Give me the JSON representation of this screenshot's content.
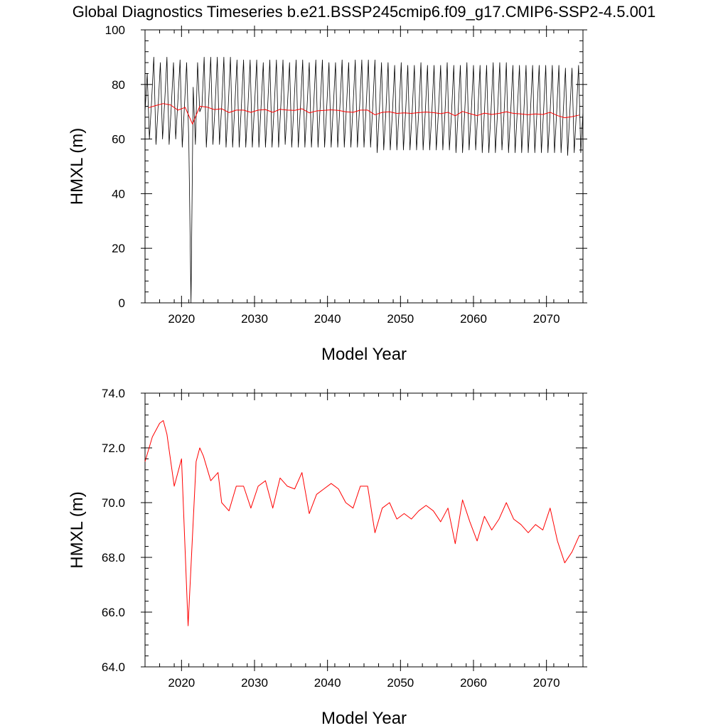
{
  "title": "Global Diagnostics Timeseries b.e21.BSSP245cmip6.f09_g17.CMIP6-SSP2-4.5.001",
  "colors": {
    "monthly": "#000000",
    "annual": "#ff0000",
    "axis": "#000000"
  },
  "chart_data": [
    {
      "type": "line",
      "xlabel": "Model Year",
      "ylabel": "HMXL (m)",
      "xlim": [
        2015,
        2075
      ],
      "ylim": [
        0,
        100
      ],
      "xticks": [
        "2020",
        "2030",
        "2040",
        "2050",
        "2060",
        "2070"
      ],
      "xtick_values": [
        2020,
        2030,
        2040,
        2050,
        2060,
        2070
      ],
      "yticks": [
        "0",
        "20",
        "40",
        "60",
        "80",
        "100"
      ],
      "ytick_values": [
        0,
        20,
        40,
        60,
        80,
        100
      ],
      "series": [
        {
          "kind": "monthly",
          "x": [
            2015.0,
            2015.3,
            2015.6,
            2015.9,
            2016.2,
            2016.5,
            2016.8,
            2017.1,
            2017.4,
            2017.7,
            2018.0,
            2018.3,
            2018.6,
            2018.9,
            2019.2,
            2019.5,
            2019.8,
            2020.1,
            2020.4,
            2020.7,
            2021.0,
            2021.3,
            2021.6,
            2021.9,
            2022.2,
            2022.5,
            2022.8,
            2023.1,
            2023.4,
            2023.7,
            2024.0,
            2024.3,
            2024.6,
            2024.9,
            2025.2,
            2025.5,
            2025.8,
            2026.1,
            2026.4,
            2026.7,
            2027.0,
            2027.3,
            2027.6,
            2027.9,
            2028.2,
            2028.5,
            2028.8,
            2029.1,
            2029.4,
            2029.7,
            2030.0,
            2030.3,
            2030.6,
            2030.9,
            2031.2,
            2031.5,
            2031.8,
            2032.1,
            2032.4,
            2032.7,
            2033.0,
            2033.3,
            2033.6,
            2033.9,
            2034.2,
            2034.5,
            2034.8,
            2035.1,
            2035.4,
            2035.7,
            2036.0,
            2036.3,
            2036.6,
            2036.9,
            2037.2,
            2037.5,
            2037.8,
            2038.1,
            2038.4,
            2038.7,
            2039.0,
            2039.3,
            2039.6,
            2039.9,
            2040.2,
            2040.5,
            2040.8,
            2041.1,
            2041.4,
            2041.7,
            2042.0,
            2042.3,
            2042.6,
            2042.9,
            2043.2,
            2043.5,
            2043.8,
            2044.1,
            2044.4,
            2044.7,
            2045.0,
            2045.3,
            2045.6,
            2045.9,
            2046.2,
            2046.5,
            2046.8,
            2047.1,
            2047.4,
            2047.7,
            2048.0,
            2048.3,
            2048.6,
            2048.9,
            2049.2,
            2049.5,
            2049.8,
            2050.1,
            2050.4,
            2050.7,
            2051.0,
            2051.3,
            2051.6,
            2051.9,
            2052.2,
            2052.5,
            2052.8,
            2053.1,
            2053.4,
            2053.7,
            2054.0,
            2054.3,
            2054.6,
            2054.9,
            2055.2,
            2055.5,
            2055.8,
            2056.1,
            2056.4,
            2056.7,
            2057.0,
            2057.3,
            2057.6,
            2057.9,
            2058.2,
            2058.5,
            2058.8,
            2059.1,
            2059.4,
            2059.7,
            2060.0,
            2060.3,
            2060.6,
            2060.9,
            2061.2,
            2061.5,
            2061.8,
            2062.1,
            2062.4,
            2062.7,
            2063.0,
            2063.3,
            2063.6,
            2063.9,
            2064.2,
            2064.5,
            2064.8,
            2065.1,
            2065.4,
            2065.7,
            2066.0,
            2066.3,
            2066.6,
            2066.9,
            2067.2,
            2067.5,
            2067.8,
            2068.1,
            2068.4,
            2068.7,
            2069.0,
            2069.3,
            2069.6,
            2069.9,
            2070.2,
            2070.5,
            2070.8,
            2071.1,
            2071.4,
            2071.7,
            2072.0,
            2072.3,
            2072.6,
            2072.9,
            2073.2,
            2073.5,
            2073.8,
            2074.1,
            2074.4,
            2074.7,
            2075.0
          ],
          "y": [
            70,
            84,
            60,
            74,
            90,
            58,
            72,
            88,
            60,
            74,
            90,
            58,
            72,
            88,
            60,
            74,
            89,
            57,
            72,
            88,
            59,
            0,
            79,
            58,
            88,
            70,
            72,
            90,
            57,
            73,
            90,
            58,
            72,
            90,
            58,
            72,
            90,
            57,
            72,
            90,
            57,
            72,
            89,
            57,
            72,
            89,
            57,
            72,
            89,
            57,
            72,
            89,
            57,
            72,
            88,
            57,
            72,
            89,
            57,
            72,
            89,
            57,
            72,
            89,
            58,
            72,
            88,
            57,
            72,
            89,
            57,
            72,
            89,
            57,
            72,
            88,
            57,
            72,
            89,
            57,
            72,
            89,
            57,
            72,
            88,
            57,
            72,
            88,
            57,
            72,
            89,
            57,
            72,
            88,
            57,
            72,
            89,
            57,
            72,
            89,
            57,
            72,
            89,
            57,
            72,
            89,
            55,
            70,
            88,
            56,
            70,
            88,
            56,
            70,
            87,
            56,
            70,
            88,
            56,
            70,
            87,
            56,
            70,
            87,
            56,
            70,
            88,
            56,
            70,
            87,
            56,
            70,
            87,
            56,
            70,
            87,
            56,
            70,
            88,
            56,
            70,
            87,
            55,
            70,
            87,
            55,
            70,
            88,
            56,
            70,
            87,
            56,
            70,
            87,
            55,
            70,
            87,
            55,
            70,
            88,
            55,
            70,
            88,
            56,
            70,
            88,
            55,
            70,
            87,
            55,
            70,
            87,
            55,
            70,
            87,
            55,
            70,
            87,
            55,
            70,
            87,
            55,
            70,
            87,
            55,
            70,
            87,
            55,
            70,
            87,
            55,
            70,
            86,
            54,
            70,
            86,
            55,
            70,
            87,
            55,
            70
          ]
        },
        {
          "kind": "annual",
          "x": [
            2015.5,
            2016.5,
            2017.5,
            2018.5,
            2019.5,
            2020.5,
            2021.5,
            2022.5,
            2023.5,
            2024.5,
            2025.5,
            2026.5,
            2027.5,
            2028.5,
            2029.5,
            2030.5,
            2031.5,
            2032.5,
            2033.5,
            2034.5,
            2035.5,
            2036.5,
            2037.5,
            2038.5,
            2039.5,
            2040.5,
            2041.5,
            2042.5,
            2043.5,
            2044.5,
            2045.5,
            2046.5,
            2047.5,
            2048.5,
            2049.5,
            2050.5,
            2051.5,
            2052.5,
            2053.5,
            2054.5,
            2055.5,
            2056.5,
            2057.5,
            2058.5,
            2059.5,
            2060.5,
            2061.5,
            2062.5,
            2063.5,
            2064.5,
            2065.5,
            2066.5,
            2067.5,
            2068.5,
            2069.5,
            2070.5,
            2071.5,
            2072.5,
            2073.5,
            2074.5
          ],
          "y": [
            71.5,
            72.3,
            73.0,
            72.5,
            70.6,
            71.6,
            65.5,
            72.0,
            71.7,
            70.8,
            71.1,
            69.7,
            70.6,
            70.6,
            69.8,
            70.6,
            70.8,
            69.8,
            70.9,
            70.6,
            70.5,
            71.1,
            69.6,
            70.3,
            70.5,
            70.7,
            70.5,
            70.0,
            69.8,
            70.6,
            70.6,
            68.9,
            69.8,
            70.0,
            69.4,
            69.6,
            69.4,
            69.7,
            69.9,
            69.7,
            69.3,
            69.8,
            68.5,
            70.1,
            69.3,
            68.6,
            69.5,
            69.0,
            69.4,
            70.0,
            69.4,
            69.2,
            68.9,
            69.2,
            69.0,
            69.8,
            68.6,
            67.8,
            68.2,
            68.8
          ]
        }
      ]
    },
    {
      "type": "line",
      "xlabel": "Model Year",
      "ylabel": "HMXL (m)",
      "xlim": [
        2015,
        2075
      ],
      "ylim": [
        64,
        74
      ],
      "xticks": [
        "2020",
        "2030",
        "2040",
        "2050",
        "2060",
        "2070"
      ],
      "xtick_values": [
        2020,
        2030,
        2040,
        2050,
        2060,
        2070
      ],
      "yticks": [
        "64.0",
        "66.0",
        "68.0",
        "70.0",
        "72.0",
        "74.0"
      ],
      "ytick_values": [
        64,
        66,
        68,
        70,
        72,
        74
      ],
      "series": [
        {
          "kind": "annual",
          "x": [
            2015.0,
            2016.0,
            2017.0,
            2017.5,
            2018.0,
            2019.0,
            2020.0,
            2020.9,
            2022.0,
            2022.5,
            2023.0,
            2024.0,
            2025.0,
            2025.5,
            2026.5,
            2027.5,
            2028.5,
            2029.5,
            2030.5,
            2031.5,
            2032.5,
            2033.5,
            2034.5,
            2035.5,
            2036.5,
            2037.5,
            2038.5,
            2039.5,
            2040.5,
            2041.5,
            2042.5,
            2043.5,
            2044.5,
            2045.5,
            2046.5,
            2047.5,
            2048.5,
            2049.5,
            2050.5,
            2051.5,
            2052.5,
            2053.5,
            2054.5,
            2055.5,
            2056.5,
            2057.5,
            2058.5,
            2059.5,
            2060.5,
            2061.5,
            2062.5,
            2063.5,
            2064.5,
            2065.5,
            2066.5,
            2067.5,
            2068.5,
            2069.5,
            2070.5,
            2071.5,
            2072.5,
            2073.5,
            2074.5
          ],
          "y": [
            71.5,
            72.4,
            72.9,
            73.0,
            72.5,
            70.6,
            71.6,
            65.5,
            71.5,
            72.0,
            71.7,
            70.8,
            71.1,
            70.0,
            69.7,
            70.6,
            70.6,
            69.8,
            70.6,
            70.8,
            69.8,
            70.9,
            70.6,
            70.5,
            71.1,
            69.6,
            70.3,
            70.5,
            70.7,
            70.5,
            70.0,
            69.8,
            70.6,
            70.6,
            68.9,
            69.8,
            70.0,
            69.4,
            69.6,
            69.4,
            69.7,
            69.9,
            69.7,
            69.3,
            69.8,
            68.5,
            70.1,
            69.3,
            68.6,
            69.5,
            69.0,
            69.4,
            70.0,
            69.4,
            69.2,
            68.9,
            69.2,
            69.0,
            69.8,
            68.6,
            67.8,
            68.2,
            68.8
          ]
        }
      ]
    }
  ]
}
